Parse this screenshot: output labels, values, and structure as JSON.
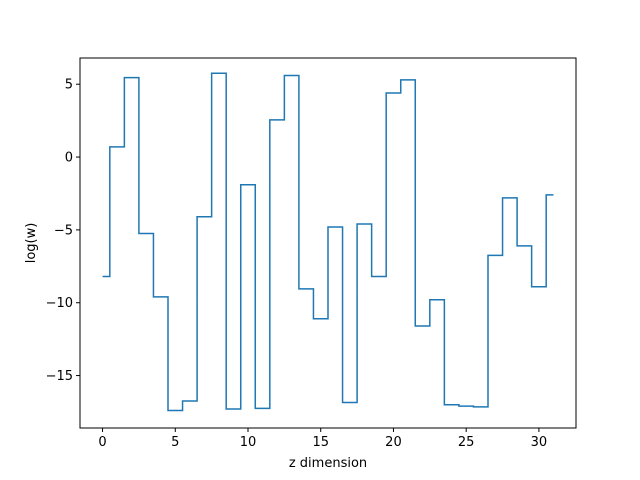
{
  "chart_data": {
    "type": "line",
    "drawstyle": "steps-mid",
    "title": "",
    "xlabel": "z dimension",
    "ylabel": "log(w)",
    "xlim": [
      -1.55,
      32.55
    ],
    "ylim": [
      -18.6,
      6.8
    ],
    "xticks": [
      0,
      5,
      10,
      15,
      20,
      25,
      30
    ],
    "yticks": [
      -15,
      -10,
      -5,
      0,
      5
    ],
    "xtick_labels": [
      "0",
      "5",
      "10",
      "15",
      "20",
      "25",
      "30"
    ],
    "ytick_labels": [
      "−15",
      "−10",
      "−5",
      "0",
      "5"
    ],
    "grid": false,
    "series": [
      {
        "color": "#1f77b4",
        "x": [
          0,
          1,
          2,
          3,
          4,
          5,
          6,
          7,
          8,
          9,
          10,
          11,
          12,
          13,
          14,
          15,
          16,
          17,
          18,
          19,
          20,
          21,
          22,
          23,
          24,
          25,
          26,
          27,
          28,
          29,
          30,
          31
        ],
        "values": [
          -8.2,
          0.7,
          5.45,
          -5.25,
          -9.6,
          -17.4,
          -16.75,
          -4.1,
          5.75,
          -17.3,
          -1.9,
          -17.25,
          2.55,
          5.6,
          -9.05,
          -11.1,
          -4.8,
          -16.85,
          -4.6,
          -8.2,
          4.4,
          5.3,
          -11.6,
          -9.8,
          -17.0,
          -17.1,
          -17.15,
          -6.75,
          -2.8,
          -6.1,
          -8.9,
          -2.6
        ]
      }
    ]
  }
}
